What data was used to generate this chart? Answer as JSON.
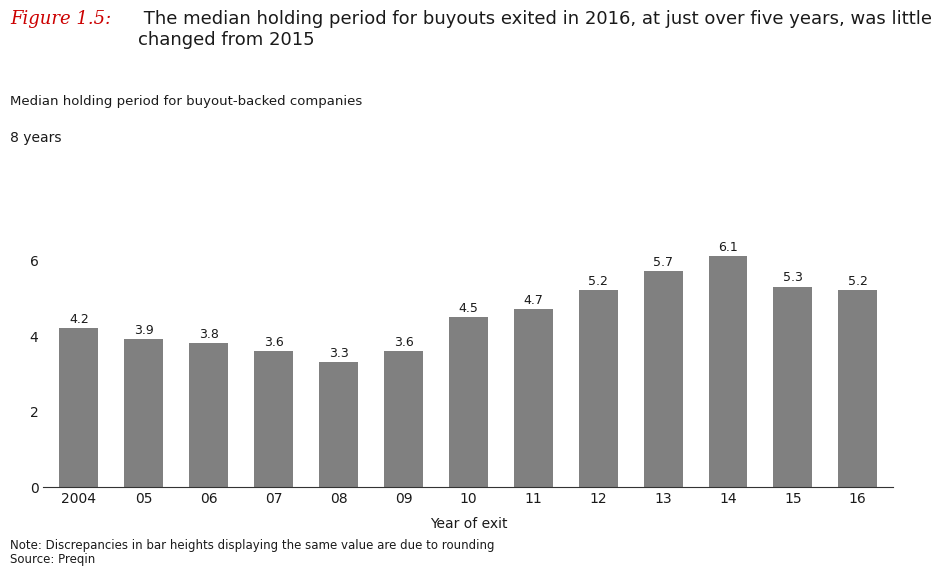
{
  "categories": [
    "2004",
    "05",
    "06",
    "07",
    "08",
    "09",
    "10",
    "11",
    "12",
    "13",
    "14",
    "15",
    "16"
  ],
  "values": [
    4.2,
    3.9,
    3.8,
    3.6,
    3.3,
    3.6,
    4.5,
    4.7,
    5.2,
    5.7,
    6.1,
    5.3,
    5.2
  ],
  "bar_color": "#808080",
  "title_italic": "Figure 1.5:",
  "title_italic_color": "#cc0000",
  "title_normal": " The median holding period for buyouts exited in 2016, at just over five years, was little\nchanged from 2015",
  "title_normal_color": "#1a1a1a",
  "subtitle": "Median holding period for buyout-backed companies",
  "ylabel_text": "8 years",
  "xlabel": "Year of exit",
  "yticks": [
    0,
    2,
    4,
    6
  ],
  "ylim": [
    0,
    8
  ],
  "note": "Note: Discrepancies in bar heights displaying the same value are due to rounding\nSource: Preqin",
  "bar_label_fontsize": 9,
  "axis_fontsize": 10,
  "subtitle_fontsize": 9.5,
  "note_fontsize": 8.5,
  "title_fontsize": 13,
  "background_color": "#ffffff",
  "text_color": "#1a1a1a"
}
